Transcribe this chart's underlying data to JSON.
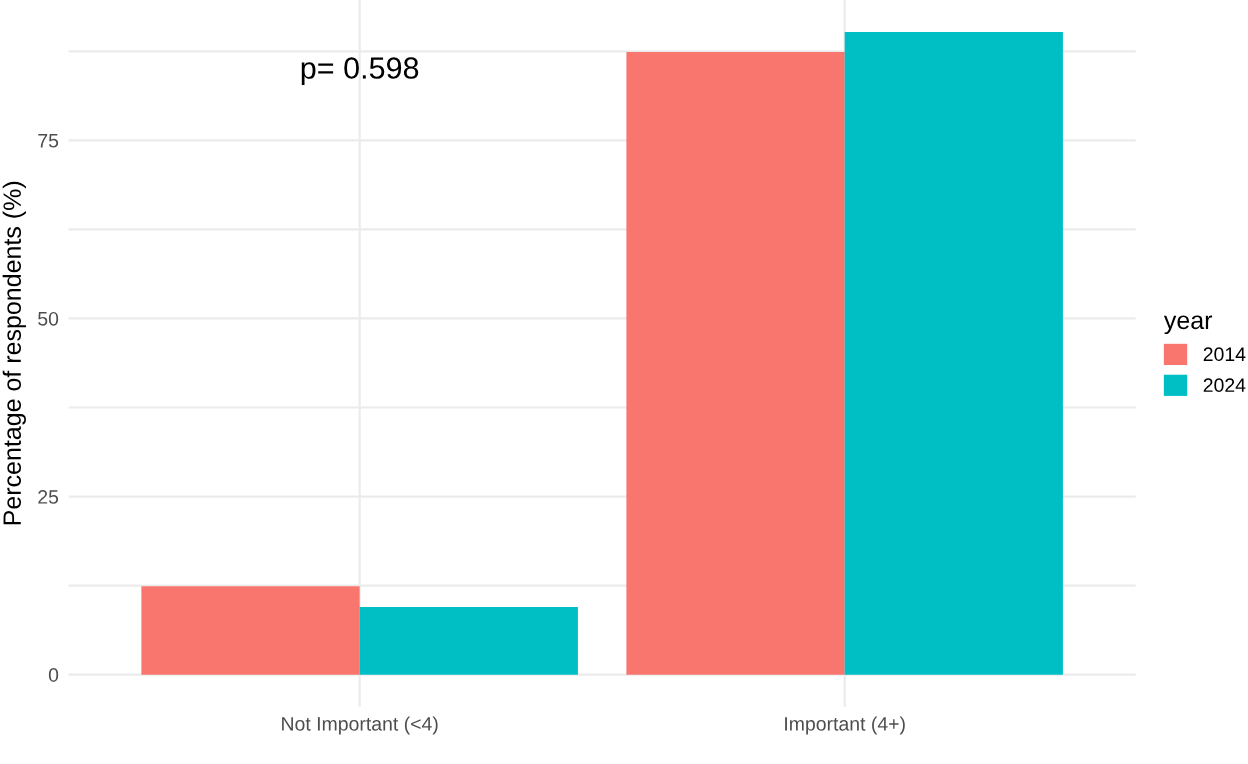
{
  "chart_data": {
    "type": "bar",
    "ylabel": "Percentage of respondents (%)",
    "legend_title": "year",
    "categories": [
      "Not Important (<4)",
      "Important (4+)"
    ],
    "series": [
      {
        "name": "2014",
        "color": "#f8766d",
        "values": [
          12.4,
          87.4
        ]
      },
      {
        "name": "2024",
        "color": "#00bfc4",
        "values": [
          9.5,
          90.2
        ]
      }
    ],
    "ylim": [
      -4.5,
      94.7
    ],
    "yticks": [
      0,
      {
        "value": 12.5,
        "label": null
      },
      25,
      {
        "value": 37.5,
        "label": null
      },
      50,
      {
        "value": 62.5,
        "label": null
      },
      75,
      {
        "value": 87.5,
        "label": null
      }
    ],
    "annotations": [
      "p= 0.598"
    ],
    "grid": true,
    "legend": "right"
  }
}
